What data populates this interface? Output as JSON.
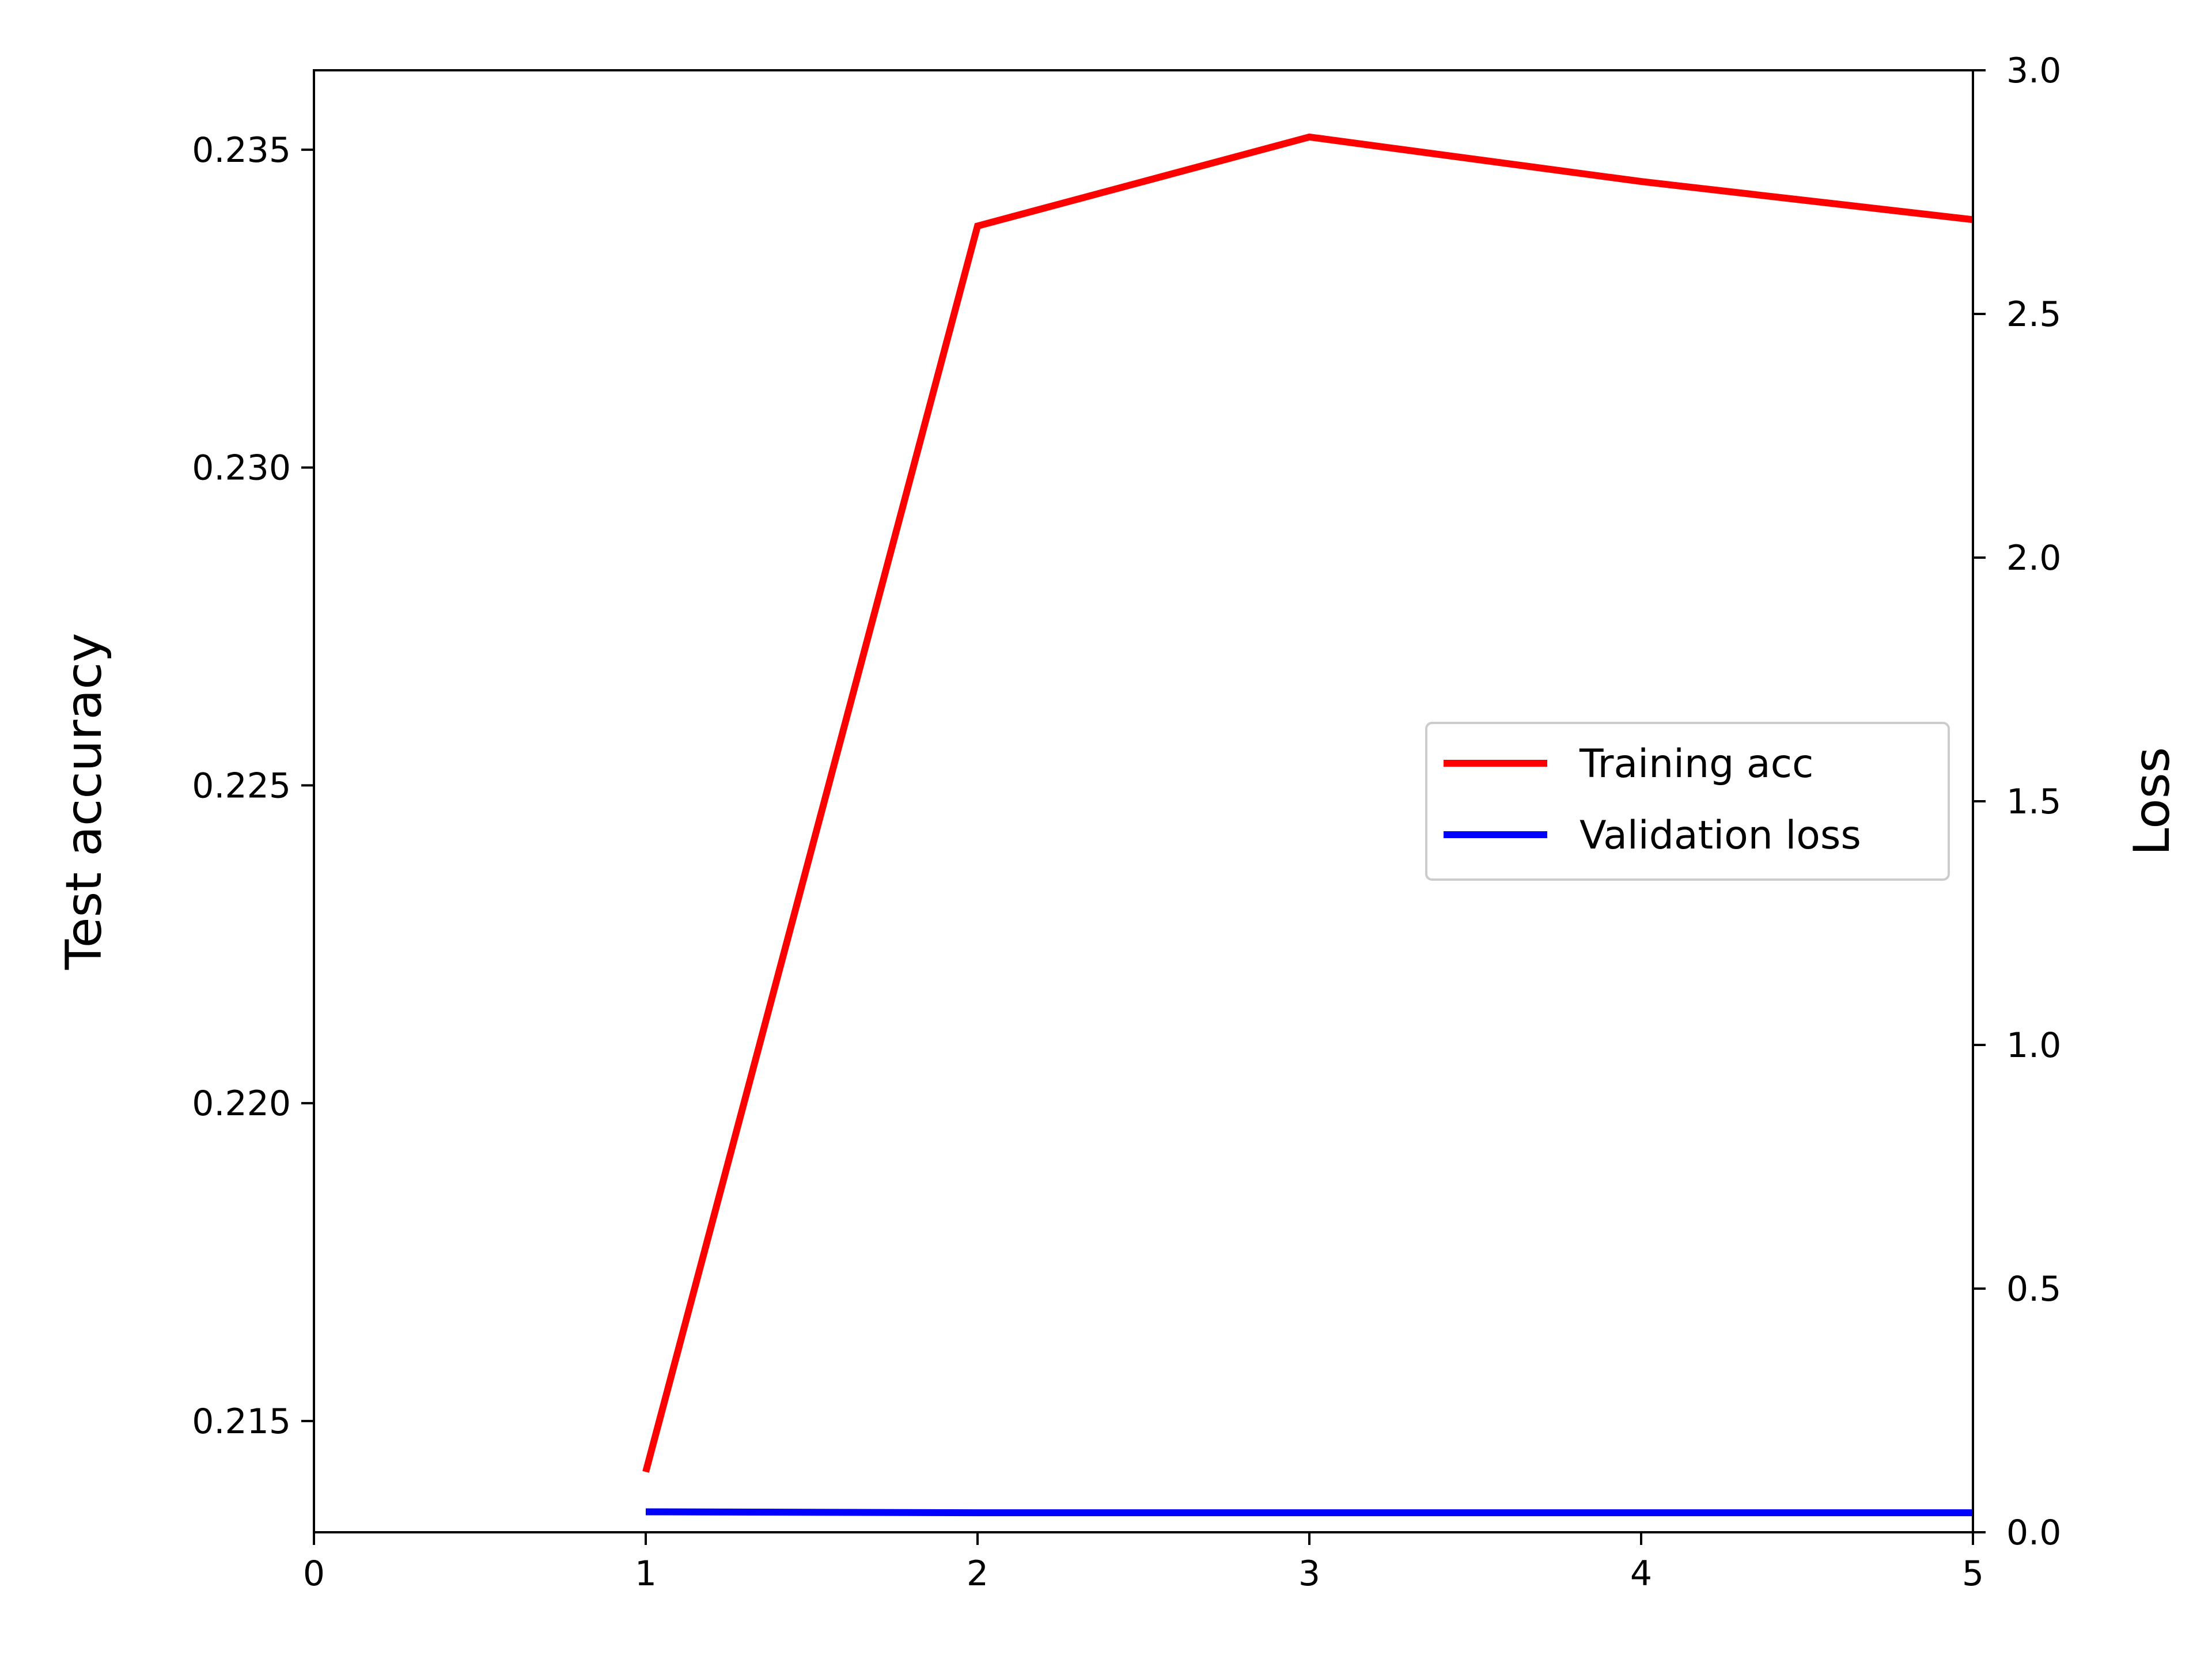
{
  "chart_data": {
    "type": "line",
    "xlabel": "",
    "left_ylabel": "Test accuracy",
    "right_ylabel": "Loss",
    "xlim": [
      0,
      5
    ],
    "left_ylim": [
      0.21325,
      0.23625
    ],
    "right_ylim": [
      0,
      3
    ],
    "x_ticks": [
      0,
      1,
      2,
      3,
      4,
      5
    ],
    "left_y_ticks": [
      0.215,
      0.22,
      0.225,
      0.23,
      0.235
    ],
    "left_y_tick_labels": [
      "0.215",
      "0.220",
      "0.225",
      "0.230",
      "0.235"
    ],
    "right_y_ticks": [
      0,
      0.5,
      1,
      1.5,
      2,
      2.5,
      3
    ],
    "right_y_tick_labels": [
      "0.0",
      "0.5",
      "1.0",
      "1.5",
      "2.0",
      "2.5",
      "3.0"
    ],
    "grid": false,
    "legend_position": "center-right",
    "series": [
      {
        "name": "Training acc",
        "axis": "left",
        "color": "#ff0000",
        "x": [
          1,
          2,
          3,
          4,
          5
        ],
        "y": [
          0.2142,
          0.2338,
          0.2352,
          0.2345,
          0.2339
        ]
      },
      {
        "name": "Validation loss",
        "axis": "right",
        "color": "#0000ff",
        "x": [
          1,
          2,
          3,
          4,
          5
        ],
        "y": [
          0.042,
          0.04,
          0.04,
          0.04,
          0.04
        ]
      }
    ]
  }
}
